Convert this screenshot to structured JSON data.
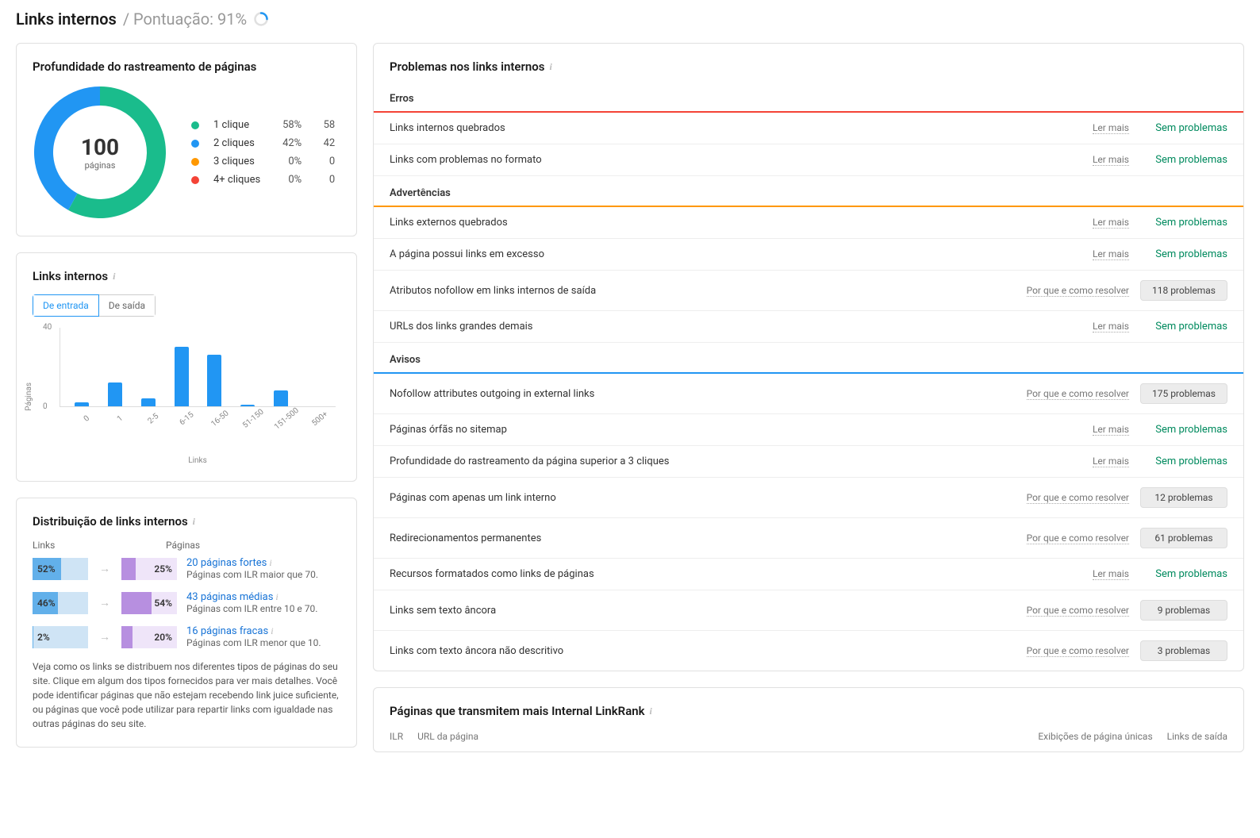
{
  "header": {
    "title": "Links internos",
    "score_label": "/ Pontuação: 91%",
    "spinner_color": "#2196f3"
  },
  "crawl_depth": {
    "title": "Profundidade do rastreamento de páginas",
    "center_number": "100",
    "center_sub": "páginas",
    "donut": {
      "slices": [
        {
          "label": "1 clique",
          "pct": 58,
          "count": 58,
          "color": "#1abc8c"
        },
        {
          "label": "2 cliques",
          "pct": 42,
          "count": 42,
          "color": "#2196f3"
        },
        {
          "label": "3 cliques",
          "pct": 0,
          "count": 0,
          "color": "#ff9800"
        },
        {
          "label": "4+ cliques",
          "pct": 0,
          "count": 0,
          "color": "#f44336"
        }
      ],
      "donut_width": 24,
      "size": 170
    }
  },
  "links_internos_chart": {
    "title": "Links internos",
    "tabs": [
      "De entrada",
      "De saída"
    ],
    "active_tab": 0,
    "ylabel": "Páginas",
    "xlabel": "Links",
    "ylim": [
      0,
      40
    ],
    "ytick_step": 40,
    "bar_color": "#2196f3",
    "categories": [
      "0",
      "1",
      "2-5",
      "6-15",
      "16-50",
      "51-150",
      "151-500",
      "500+"
    ],
    "values": [
      2,
      12,
      4,
      30,
      26,
      1,
      8,
      0
    ]
  },
  "distribution": {
    "title": "Distribuição de links internos",
    "col_links": "Links",
    "col_pages": "Páginas",
    "rows": [
      {
        "links_pct": 52,
        "links_fill_color": "#62b0ea",
        "links_bg_color": "#cfe4f5",
        "pages_pct": 25,
        "pages_fill_color": "#b78fe0",
        "pages_bg_color": "#efe5f9",
        "link_text": "20 páginas fortes",
        "sub": "Páginas com ILR maior que 70."
      },
      {
        "links_pct": 46,
        "links_fill_color": "#62b0ea",
        "links_bg_color": "#cfe4f5",
        "pages_pct": 54,
        "pages_fill_color": "#b78fe0",
        "pages_bg_color": "#efe5f9",
        "link_text": "43 páginas médias",
        "sub": "Páginas com ILR entre 10 e 70."
      },
      {
        "links_pct": 2,
        "links_fill_color": "#62b0ea",
        "links_bg_color": "#cfe4f5",
        "pages_pct": 20,
        "pages_fill_color": "#b78fe0",
        "pages_bg_color": "#efe5f9",
        "link_text": "16 páginas fracas",
        "sub": "Páginas com ILR menor que 10."
      }
    ],
    "blurb": "Veja como os links se distribuem nos diferentes tipos de páginas do seu site. Clique em algum dos tipos fornecidos para ver mais detalhes. Você pode identificar páginas que não estejam recebendo link juice suficiente, ou páginas que você pode utilizar para repartir links com igualdade nas outras páginas do seu site."
  },
  "issues": {
    "title": "Problemas nos links internos",
    "labels": {
      "read_more": "Ler mais",
      "resolve": "Por que e como resolver",
      "ok": "Sem problemas"
    },
    "sections": [
      {
        "name": "Erros",
        "color": "#f44336",
        "items": [
          {
            "text": "Links internos quebrados",
            "action": "read_more",
            "status": "ok"
          },
          {
            "text": "Links com problemas no formato",
            "action": "read_more",
            "status": "ok"
          }
        ]
      },
      {
        "name": "Advertências",
        "color": "#ff9800",
        "items": [
          {
            "text": "Links externos quebrados",
            "action": "read_more",
            "status": "ok"
          },
          {
            "text": "A página possui links em excesso",
            "action": "read_more",
            "status": "ok"
          },
          {
            "text": "Atributos nofollow em links internos de saída",
            "action": "resolve",
            "status": "badge",
            "badge": "118 problemas"
          },
          {
            "text": "URLs dos links grandes demais",
            "action": "read_more",
            "status": "ok"
          }
        ]
      },
      {
        "name": "Avisos",
        "color": "#2196f3",
        "items": [
          {
            "text": "Nofollow attributes outgoing in external links",
            "action": "resolve",
            "status": "badge",
            "badge": "175 problemas"
          },
          {
            "text": "Páginas órfãs no sitemap",
            "action": "read_more",
            "status": "ok"
          },
          {
            "text": "Profundidade do rastreamento da página superior a 3 cliques",
            "action": "read_more",
            "status": "ok"
          },
          {
            "text": "Páginas com apenas um link interno",
            "action": "resolve",
            "status": "badge",
            "badge": "12 problemas"
          },
          {
            "text": "Redirecionamentos permanentes",
            "action": "resolve",
            "status": "badge",
            "badge": "61 problemas"
          },
          {
            "text": "Recursos formatados como links de páginas",
            "action": "read_more",
            "status": "ok"
          },
          {
            "text": "Links sem texto âncora",
            "action": "resolve",
            "status": "badge",
            "badge": "9 problemas"
          },
          {
            "text": "Links com texto âncora não descritivo",
            "action": "resolve",
            "status": "badge",
            "badge": "3 problemas"
          }
        ]
      }
    ]
  },
  "bottom_card": {
    "title": "Páginas que transmitem mais Internal LinkRank",
    "cols_left": [
      "ILR",
      "URL da página"
    ],
    "cols_right": [
      "Exibições de página únicas",
      "Links de saída"
    ]
  }
}
